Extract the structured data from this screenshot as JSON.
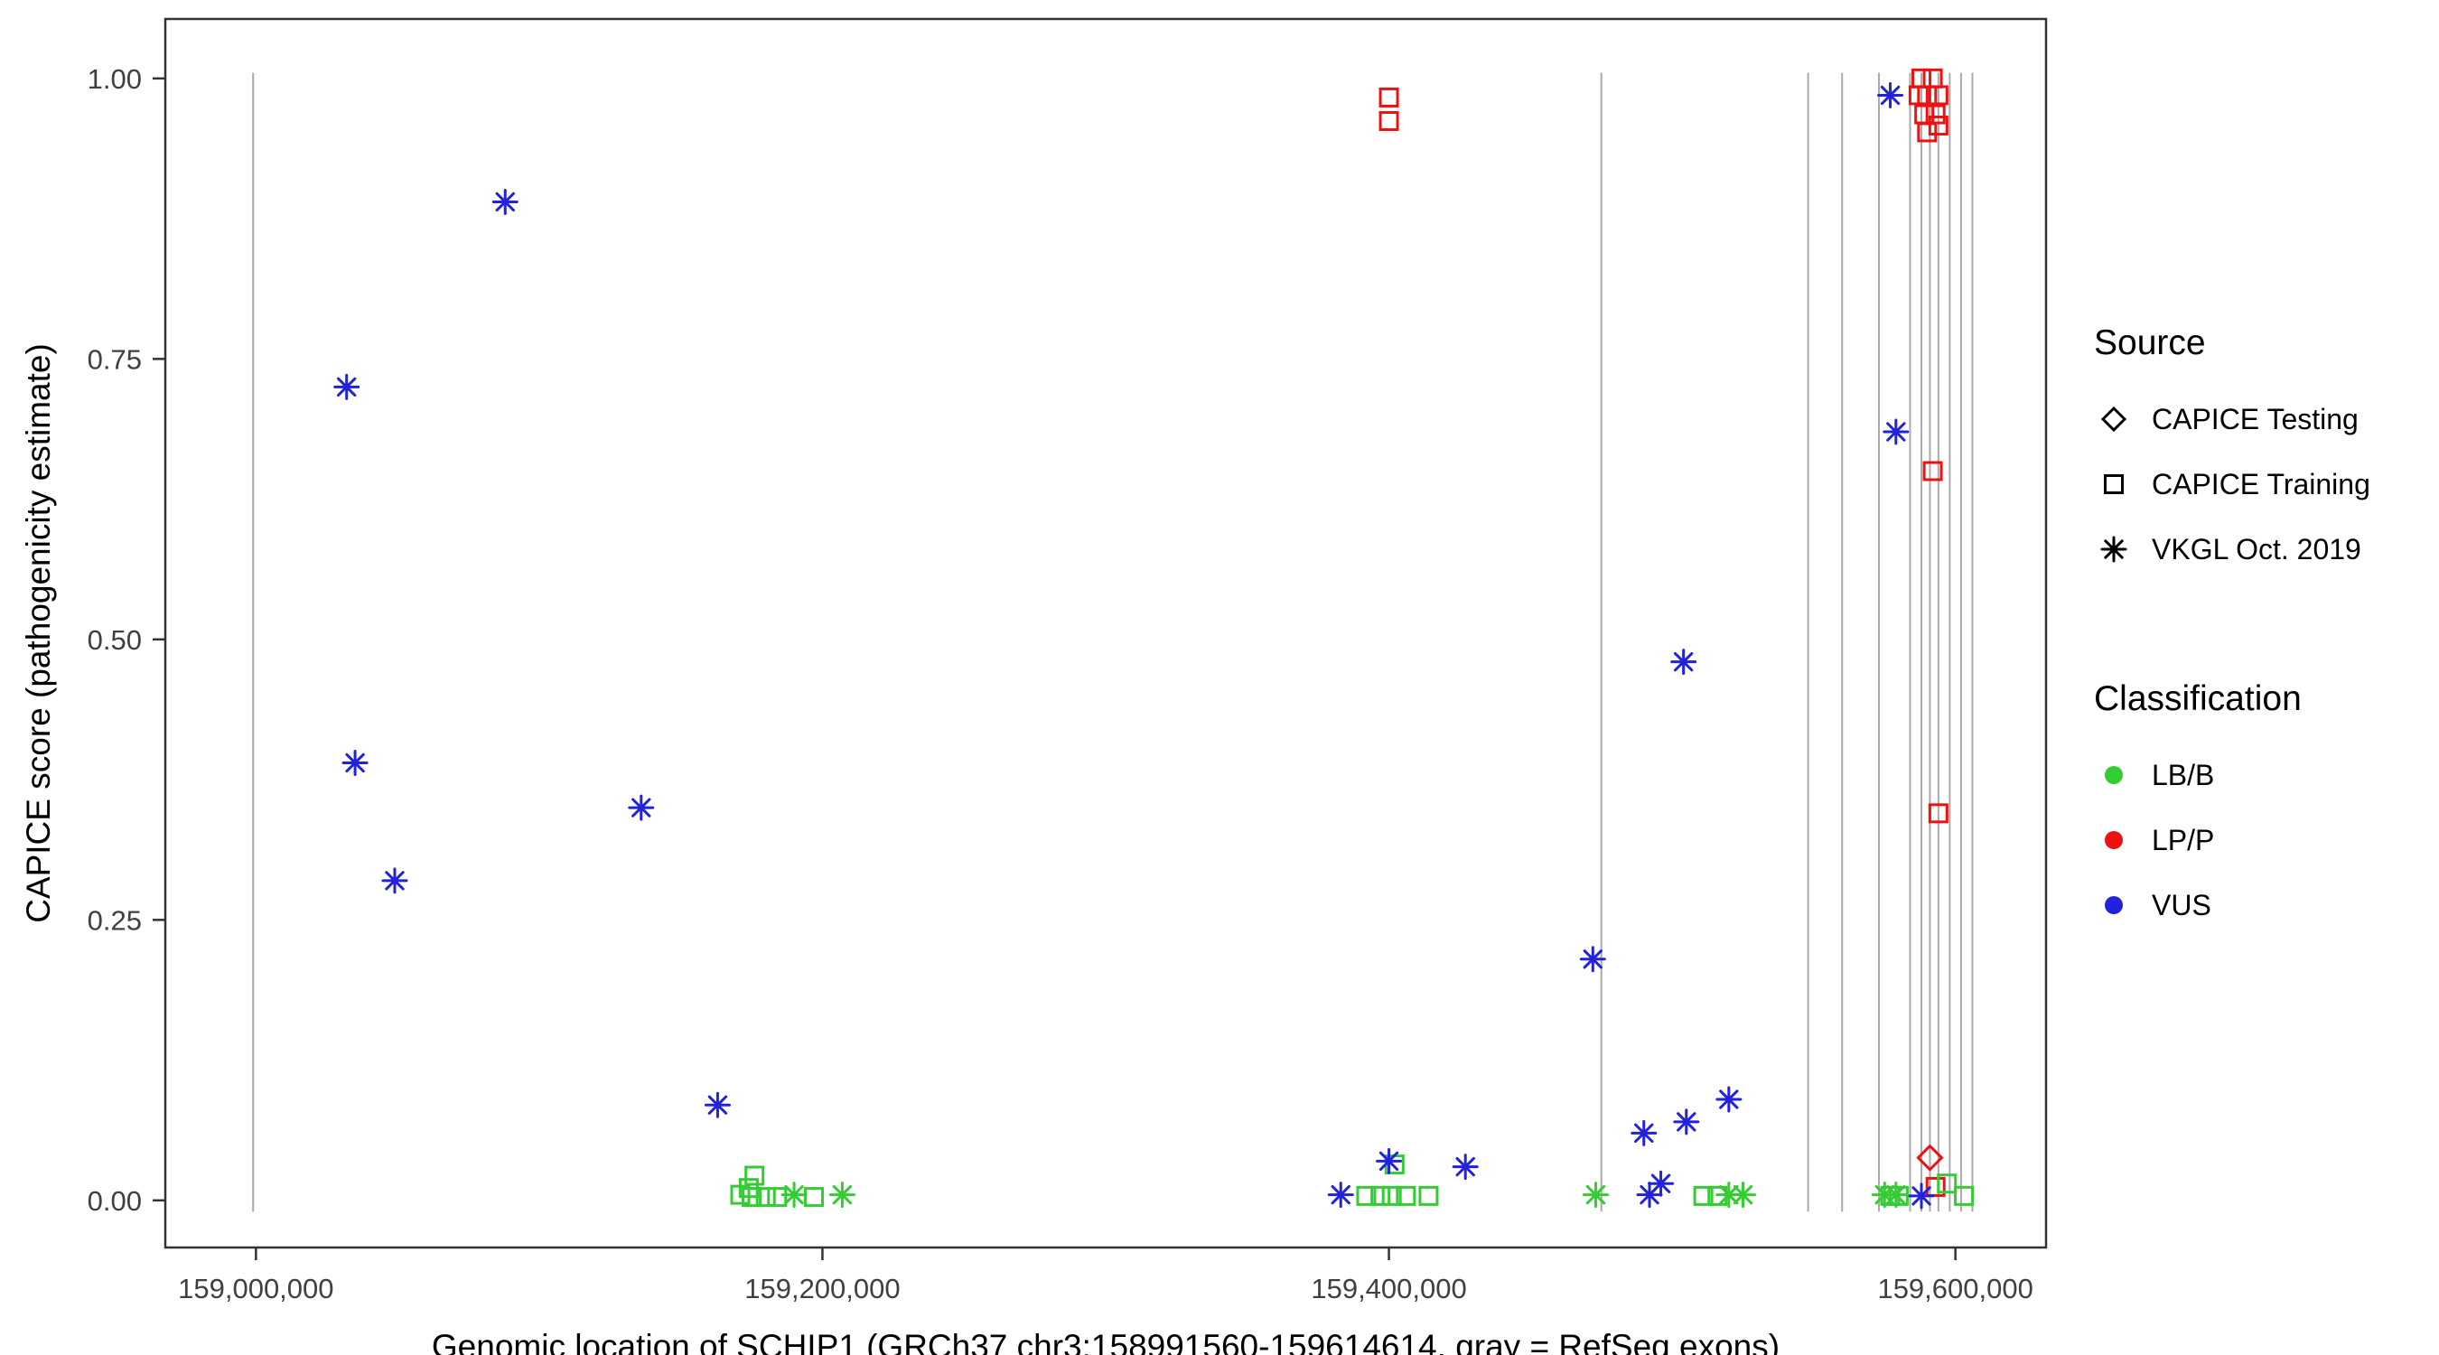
{
  "chart_data": {
    "type": "scatter",
    "title": "",
    "xlabel": "Genomic location of SCHIP1 (GRCh37 chr3:158991560-159614614, gray = RefSeq exons)",
    "ylabel": "CAPICE score (pathogenicity estimate)",
    "xlim": [
      158968000,
      159632000
    ],
    "ylim": [
      -0.042,
      1.053
    ],
    "x_ticks": [
      159000000,
      159200000,
      159400000,
      159600000
    ],
    "x_tick_labels": [
      "159,000,000",
      "159,200,000",
      "159,400,000",
      "159,600,000"
    ],
    "y_ticks": [
      0,
      0.25,
      0.5,
      0.75,
      1
    ],
    "y_tick_labels": [
      "0.00",
      "0.25",
      "0.50",
      "0.75",
      "1.00"
    ],
    "grid": false,
    "panel_border": true,
    "legend_position": "right",
    "colors": {
      "LB/B": "#33cc33",
      "LP/P": "#ee1111",
      "VUS": "#2222dd",
      "exon_line": "#aaaaaa",
      "axis": "#333333",
      "tick_label": "#404040"
    },
    "refseq_exons_x": [
      158999000,
      159475000,
      159548000,
      159560000,
      159573000,
      159584000,
      159588000,
      159591000,
      159594000,
      159598000,
      159602000,
      159606000
    ],
    "series": [
      {
        "name": "CAPICE Testing / LP/P",
        "source": "CAPICE Testing",
        "classification": "LP/P",
        "marker": "diamond",
        "points": [
          [
            159591000,
            0.038
          ]
        ]
      },
      {
        "name": "CAPICE Training / LP/P",
        "source": "CAPICE Training",
        "classification": "LP/P",
        "marker": "square",
        "points": [
          [
            159400000,
            0.983
          ],
          [
            159400000,
            0.962
          ],
          [
            159588000,
            1.0
          ],
          [
            159592000,
            1.0
          ],
          [
            159587000,
            0.985
          ],
          [
            159590000,
            0.985
          ],
          [
            159594000,
            0.985
          ],
          [
            159589000,
            0.968
          ],
          [
            159593000,
            0.968
          ],
          [
            159590000,
            0.952
          ],
          [
            159594000,
            0.958
          ],
          [
            159592000,
            0.65
          ],
          [
            159594000,
            0.345
          ],
          [
            159593000,
            0.012
          ]
        ]
      },
      {
        "name": "CAPICE Training / LB/B",
        "source": "CAPICE Training",
        "classification": "LB/B",
        "marker": "square",
        "points": [
          [
            159171000,
            0.005
          ],
          [
            159174000,
            0.011
          ],
          [
            159176000,
            0.022
          ],
          [
            159175000,
            0.003
          ],
          [
            159180000,
            0.003
          ],
          [
            159184000,
            0.003
          ],
          [
            159197000,
            0.003
          ],
          [
            159392000,
            0.004
          ],
          [
            159397000,
            0.004
          ],
          [
            159401000,
            0.004
          ],
          [
            159406000,
            0.004
          ],
          [
            159414000,
            0.004
          ],
          [
            159402000,
            0.032
          ],
          [
            159511000,
            0.004
          ],
          [
            159516000,
            0.004
          ],
          [
            159577000,
            0.004
          ],
          [
            159580000,
            0.004
          ],
          [
            159597000,
            0.015
          ],
          [
            159603000,
            0.004
          ]
        ]
      },
      {
        "name": "VKGL Oct. 2019 / VUS",
        "source": "VKGL Oct. 2019",
        "classification": "VUS",
        "marker": "asterisk",
        "points": [
          [
            159032000,
            0.725
          ],
          [
            159035000,
            0.39
          ],
          [
            159049000,
            0.285
          ],
          [
            159088000,
            0.89
          ],
          [
            159136000,
            0.35
          ],
          [
            159163000,
            0.085
          ],
          [
            159383000,
            0.005
          ],
          [
            159400000,
            0.035
          ],
          [
            159427000,
            0.03
          ],
          [
            159472000,
            0.215
          ],
          [
            159490000,
            0.06
          ],
          [
            159492000,
            0.005
          ],
          [
            159496000,
            0.015
          ],
          [
            159504000,
            0.48
          ],
          [
            159505000,
            0.07
          ],
          [
            159520000,
            0.09
          ],
          [
            159577000,
            0.985
          ],
          [
            159579000,
            0.685
          ],
          [
            159588000,
            0.004
          ]
        ]
      },
      {
        "name": "VKGL Oct. 2019 / LB/B",
        "source": "VKGL Oct. 2019",
        "classification": "LB/B",
        "marker": "asterisk",
        "points": [
          [
            159190000,
            0.005
          ],
          [
            159207000,
            0.005
          ],
          [
            159473000,
            0.005
          ],
          [
            159520000,
            0.005
          ],
          [
            159525000,
            0.005
          ],
          [
            159575000,
            0.005
          ],
          [
            159579000,
            0.005
          ]
        ]
      }
    ]
  },
  "legend": {
    "source": {
      "title": "Source",
      "items": [
        {
          "label": "CAPICE Testing",
          "marker": "diamond"
        },
        {
          "label": "CAPICE Training",
          "marker": "square"
        },
        {
          "label": "VKGL Oct. 2019",
          "marker": "asterisk"
        }
      ]
    },
    "classification": {
      "title": "Classification",
      "items": [
        {
          "label": "LB/B",
          "marker": "circle",
          "color": "#33cc33"
        },
        {
          "label": "LP/P",
          "marker": "circle",
          "color": "#ee1111"
        },
        {
          "label": "VUS",
          "marker": "circle",
          "color": "#2222dd"
        }
      ]
    }
  }
}
